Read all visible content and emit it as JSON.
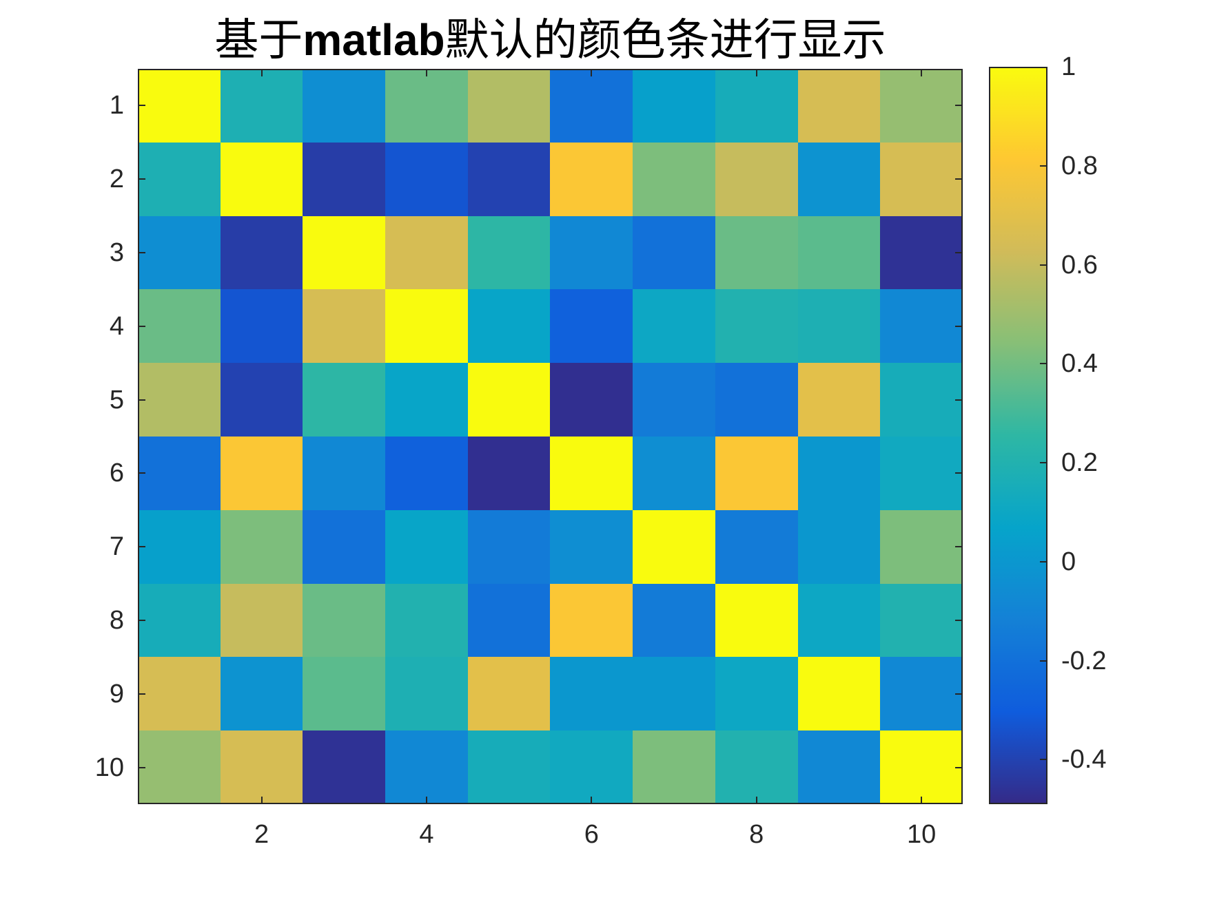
{
  "title": {
    "part1": "基于",
    "part2": "matlab",
    "part3": "默认的颜色条进行显示"
  },
  "chart_data": {
    "type": "heatmap",
    "title": "基于matlab默认的颜色条进行显示",
    "xlabel": "",
    "ylabel": "",
    "x_ticks": [
      2,
      4,
      6,
      8,
      10
    ],
    "y_ticks": [
      1,
      2,
      3,
      4,
      5,
      6,
      7,
      8,
      9,
      10
    ],
    "x_range": [
      0.5,
      10.5
    ],
    "y_range": [
      0.5,
      10.5
    ],
    "colormap": "parula",
    "clim": [
      -0.49,
      1
    ],
    "colorbar": {
      "ticks": [
        1,
        0.8,
        0.6,
        0.4,
        0.2,
        0,
        -0.2,
        -0.4
      ],
      "tick_labels": [
        "1",
        "0.8",
        "0.6",
        "0.4",
        "0.2",
        "0",
        "-0.2",
        "-0.4"
      ],
      "position": "right"
    },
    "grid": false,
    "rows": 10,
    "cols": 10,
    "values": [
      [
        1,
        0.18,
        -0.05,
        0.38,
        0.55,
        -0.2,
        0.05,
        0.15,
        0.65,
        0.48
      ],
      [
        0.18,
        1,
        -0.42,
        -0.33,
        -0.4,
        0.8,
        0.42,
        0.6,
        -0.02,
        0.65
      ],
      [
        -0.05,
        -0.42,
        1,
        0.65,
        0.25,
        -0.08,
        -0.2,
        0.38,
        0.35,
        -0.46
      ],
      [
        0.38,
        -0.33,
        0.65,
        1,
        0.08,
        -0.28,
        0.1,
        0.2,
        0.18,
        -0.08
      ],
      [
        0.55,
        -0.4,
        0.25,
        0.08,
        1,
        -0.47,
        -0.15,
        -0.2,
        0.7,
        0.15
      ],
      [
        -0.2,
        0.8,
        -0.08,
        -0.28,
        -0.47,
        1,
        -0.05,
        0.8,
        0.0,
        0.12
      ],
      [
        0.05,
        0.42,
        -0.2,
        0.08,
        -0.15,
        -0.05,
        1,
        -0.15,
        0.0,
        0.42
      ],
      [
        0.15,
        0.6,
        0.38,
        0.2,
        -0.2,
        0.8,
        -0.15,
        1,
        0.1,
        0.2
      ],
      [
        0.65,
        -0.02,
        0.35,
        0.18,
        0.7,
        0.0,
        0.0,
        0.1,
        1,
        -0.08
      ],
      [
        0.48,
        0.65,
        -0.46,
        -0.08,
        0.15,
        0.12,
        0.42,
        0.2,
        -0.08,
        1
      ]
    ]
  },
  "colors": {
    "axis": "#262626",
    "parula_stops": [
      "#352a87",
      "#0f5cdd",
      "#1481d6",
      "#06a4ca",
      "#2eb7a4",
      "#87bf77",
      "#d1bb59",
      "#fec832",
      "#f9fb0e"
    ]
  }
}
